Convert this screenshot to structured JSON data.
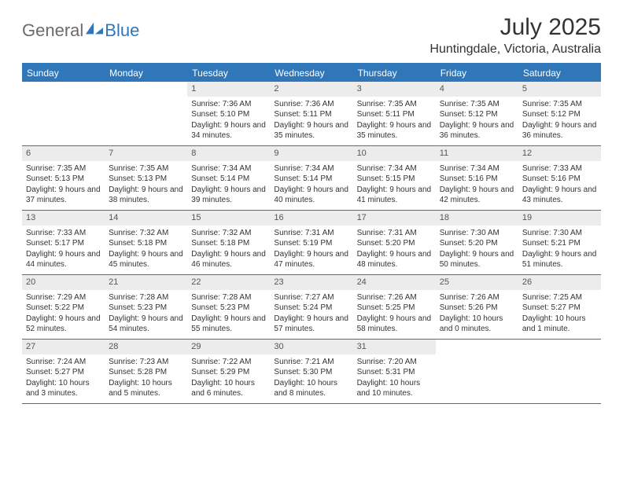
{
  "brand": {
    "part1": "General",
    "part2": "Blue"
  },
  "title": "July 2025",
  "location": "Huntingdale, Victoria, Australia",
  "colors": {
    "accent": "#2f77b9",
    "header_bg": "#2f77b9",
    "header_text": "#ffffff",
    "daynum_bg": "#ececec",
    "text": "#333333",
    "logo_gray": "#6b6b6b"
  },
  "days_of_week": [
    "Sunday",
    "Monday",
    "Tuesday",
    "Wednesday",
    "Thursday",
    "Friday",
    "Saturday"
  ],
  "first_day_index": 2,
  "days": [
    {
      "n": 1,
      "sunrise": "7:36 AM",
      "sunset": "5:10 PM",
      "daylight": "9 hours and 34 minutes."
    },
    {
      "n": 2,
      "sunrise": "7:36 AM",
      "sunset": "5:11 PM",
      "daylight": "9 hours and 35 minutes."
    },
    {
      "n": 3,
      "sunrise": "7:35 AM",
      "sunset": "5:11 PM",
      "daylight": "9 hours and 35 minutes."
    },
    {
      "n": 4,
      "sunrise": "7:35 AM",
      "sunset": "5:12 PM",
      "daylight": "9 hours and 36 minutes."
    },
    {
      "n": 5,
      "sunrise": "7:35 AM",
      "sunset": "5:12 PM",
      "daylight": "9 hours and 36 minutes."
    },
    {
      "n": 6,
      "sunrise": "7:35 AM",
      "sunset": "5:13 PM",
      "daylight": "9 hours and 37 minutes."
    },
    {
      "n": 7,
      "sunrise": "7:35 AM",
      "sunset": "5:13 PM",
      "daylight": "9 hours and 38 minutes."
    },
    {
      "n": 8,
      "sunrise": "7:34 AM",
      "sunset": "5:14 PM",
      "daylight": "9 hours and 39 minutes."
    },
    {
      "n": 9,
      "sunrise": "7:34 AM",
      "sunset": "5:14 PM",
      "daylight": "9 hours and 40 minutes."
    },
    {
      "n": 10,
      "sunrise": "7:34 AM",
      "sunset": "5:15 PM",
      "daylight": "9 hours and 41 minutes."
    },
    {
      "n": 11,
      "sunrise": "7:34 AM",
      "sunset": "5:16 PM",
      "daylight": "9 hours and 42 minutes."
    },
    {
      "n": 12,
      "sunrise": "7:33 AM",
      "sunset": "5:16 PM",
      "daylight": "9 hours and 43 minutes."
    },
    {
      "n": 13,
      "sunrise": "7:33 AM",
      "sunset": "5:17 PM",
      "daylight": "9 hours and 44 minutes."
    },
    {
      "n": 14,
      "sunrise": "7:32 AM",
      "sunset": "5:18 PM",
      "daylight": "9 hours and 45 minutes."
    },
    {
      "n": 15,
      "sunrise": "7:32 AM",
      "sunset": "5:18 PM",
      "daylight": "9 hours and 46 minutes."
    },
    {
      "n": 16,
      "sunrise": "7:31 AM",
      "sunset": "5:19 PM",
      "daylight": "9 hours and 47 minutes."
    },
    {
      "n": 17,
      "sunrise": "7:31 AM",
      "sunset": "5:20 PM",
      "daylight": "9 hours and 48 minutes."
    },
    {
      "n": 18,
      "sunrise": "7:30 AM",
      "sunset": "5:20 PM",
      "daylight": "9 hours and 50 minutes."
    },
    {
      "n": 19,
      "sunrise": "7:30 AM",
      "sunset": "5:21 PM",
      "daylight": "9 hours and 51 minutes."
    },
    {
      "n": 20,
      "sunrise": "7:29 AM",
      "sunset": "5:22 PM",
      "daylight": "9 hours and 52 minutes."
    },
    {
      "n": 21,
      "sunrise": "7:28 AM",
      "sunset": "5:23 PM",
      "daylight": "9 hours and 54 minutes."
    },
    {
      "n": 22,
      "sunrise": "7:28 AM",
      "sunset": "5:23 PM",
      "daylight": "9 hours and 55 minutes."
    },
    {
      "n": 23,
      "sunrise": "7:27 AM",
      "sunset": "5:24 PM",
      "daylight": "9 hours and 57 minutes."
    },
    {
      "n": 24,
      "sunrise": "7:26 AM",
      "sunset": "5:25 PM",
      "daylight": "9 hours and 58 minutes."
    },
    {
      "n": 25,
      "sunrise": "7:26 AM",
      "sunset": "5:26 PM",
      "daylight": "10 hours and 0 minutes."
    },
    {
      "n": 26,
      "sunrise": "7:25 AM",
      "sunset": "5:27 PM",
      "daylight": "10 hours and 1 minute."
    },
    {
      "n": 27,
      "sunrise": "7:24 AM",
      "sunset": "5:27 PM",
      "daylight": "10 hours and 3 minutes."
    },
    {
      "n": 28,
      "sunrise": "7:23 AM",
      "sunset": "5:28 PM",
      "daylight": "10 hours and 5 minutes."
    },
    {
      "n": 29,
      "sunrise": "7:22 AM",
      "sunset": "5:29 PM",
      "daylight": "10 hours and 6 minutes."
    },
    {
      "n": 30,
      "sunrise": "7:21 AM",
      "sunset": "5:30 PM",
      "daylight": "10 hours and 8 minutes."
    },
    {
      "n": 31,
      "sunrise": "7:20 AM",
      "sunset": "5:31 PM",
      "daylight": "10 hours and 10 minutes."
    }
  ],
  "labels": {
    "sunrise": "Sunrise:",
    "sunset": "Sunset:",
    "daylight": "Daylight:"
  }
}
